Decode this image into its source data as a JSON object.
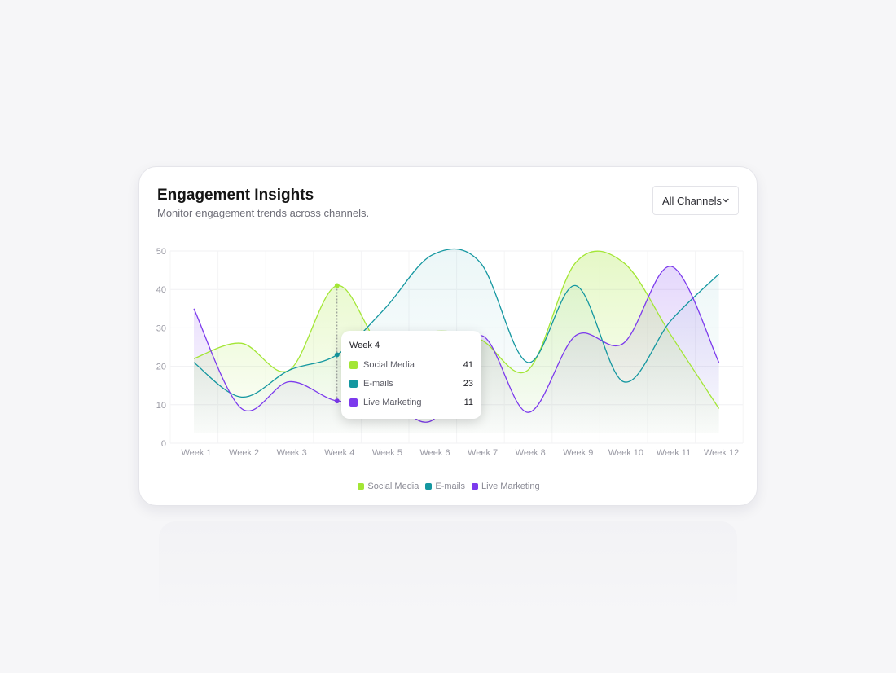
{
  "card": {
    "title": "Engagement Insights",
    "subtitle": "Monitor engagement trends across channels."
  },
  "dropdown": {
    "label": "All Channels"
  },
  "colors": {
    "social": "#a3e635",
    "emails": "#1497a0",
    "live": "#7c3aed"
  },
  "tooltip": {
    "title": "Week 4",
    "rows": [
      {
        "label": "Social Media",
        "value": "41",
        "color": "#a3e635"
      },
      {
        "label": "E-mails",
        "value": "23",
        "color": "#1497a0"
      },
      {
        "label": "Live Marketing",
        "value": "11",
        "color": "#7c3aed"
      }
    ]
  },
  "legend": [
    {
      "label": "Social Media",
      "color": "#a3e635"
    },
    {
      "label": "E-mails",
      "color": "#1497a0"
    },
    {
      "label": "Live Marketing",
      "color": "#7c3aed"
    }
  ],
  "chart_data": {
    "type": "area",
    "categories": [
      "Week 1",
      "Week 2",
      "Week 3",
      "Week 4",
      "Week 5",
      "Week 6",
      "Week 7",
      "Week 8",
      "Week 9",
      "Week 10",
      "Week 11",
      "Week 12"
    ],
    "ylim": [
      0,
      50
    ],
    "yticks": [
      0,
      10,
      20,
      30,
      40,
      50
    ],
    "grid": true,
    "legend_position": "bottom",
    "highlighted_category": "Week 4",
    "series": [
      {
        "name": "Social Media",
        "color": "#a3e635",
        "values": [
          22,
          26,
          19,
          41,
          24,
          29,
          27,
          19,
          47,
          47,
          28,
          9
        ]
      },
      {
        "name": "E-mails",
        "color": "#1497a0",
        "values": [
          21,
          12,
          19,
          23,
          35,
          49,
          47,
          21,
          41,
          16,
          32,
          44
        ]
      },
      {
        "name": "Live Marketing",
        "color": "#7c3aed",
        "values": [
          35,
          9,
          16,
          11,
          12,
          6,
          28,
          8,
          28,
          26,
          46,
          21
        ]
      }
    ]
  }
}
